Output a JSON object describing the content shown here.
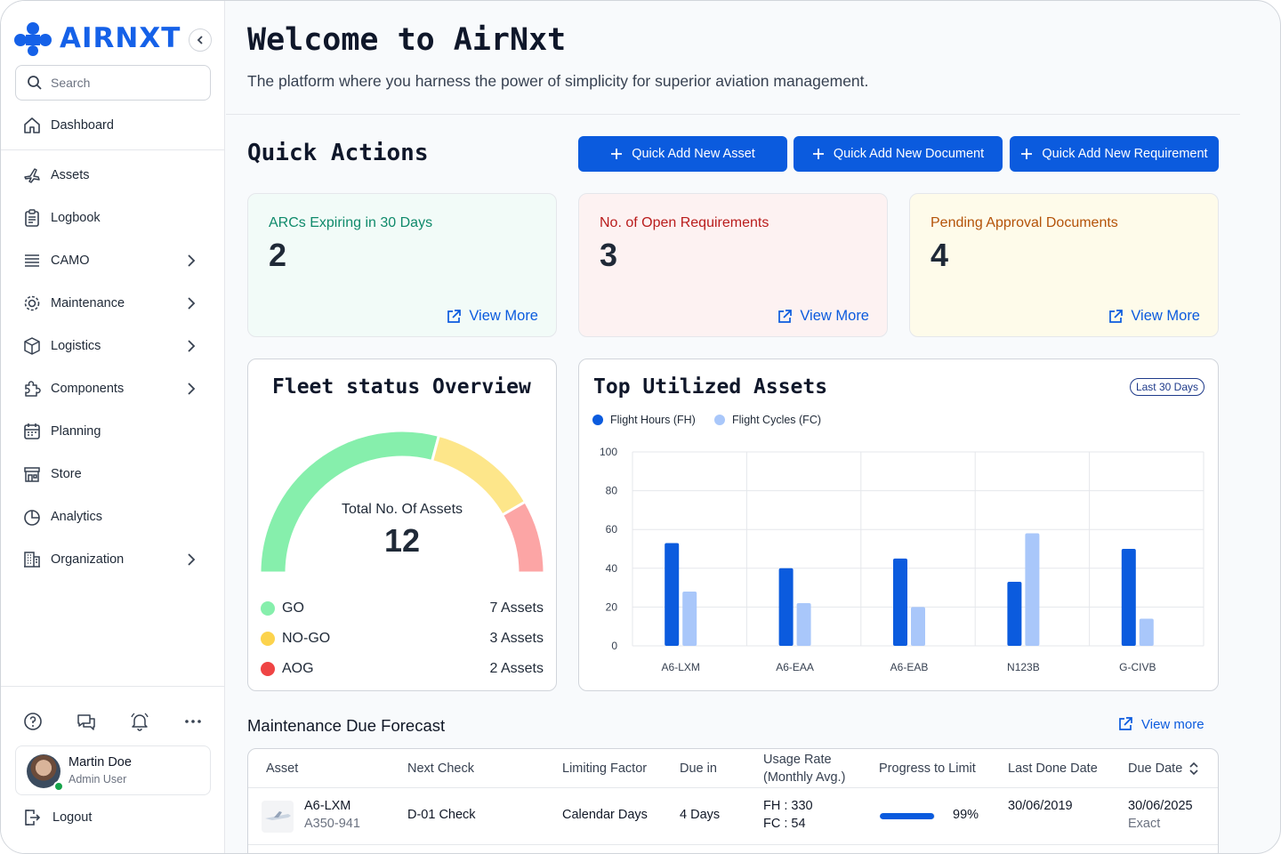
{
  "app": {
    "logo_text": "AIRNXT"
  },
  "sidebar": {
    "search_placeholder": "Search",
    "items": [
      {
        "label": "Dashboard",
        "icon": "home-icon"
      },
      {
        "label": "Assets",
        "icon": "plane-icon"
      },
      {
        "label": "Logbook",
        "icon": "clipboard-icon"
      },
      {
        "label": "CAMO",
        "icon": "list-icon",
        "expandable": true
      },
      {
        "label": "Maintenance",
        "icon": "gear-icon",
        "expandable": true
      },
      {
        "label": "Logistics",
        "icon": "box-icon",
        "expandable": true
      },
      {
        "label": "Components",
        "icon": "puzzle-icon",
        "expandable": true
      },
      {
        "label": "Planning",
        "icon": "calendar-icon"
      },
      {
        "label": "Store",
        "icon": "store-icon"
      },
      {
        "label": "Analytics",
        "icon": "pie-chart-icon"
      },
      {
        "label": "Organization",
        "icon": "building-icon",
        "expandable": true
      }
    ],
    "utility_icons": [
      "help-icon",
      "chat-icon",
      "bell-icon",
      "more-icon"
    ],
    "user": {
      "name": "Martin Doe",
      "role": "Admin User",
      "status_color": "#16a34a"
    },
    "logout_label": "Logout"
  },
  "header": {
    "title": "Welcome to AirNxt",
    "subtitle": "The platform where you harness the power of simplicity for superior aviation management."
  },
  "quick_actions": {
    "title": "Quick Actions",
    "buttons": [
      "Quick Add New Asset",
      "Quick Add New Document",
      "Quick Add New Requirement"
    ]
  },
  "stats": [
    {
      "label": "ARCs Expiring in 30 Days",
      "value": "2",
      "link": "View More",
      "color": "#0f8a6b",
      "bg": "#f2fbf8"
    },
    {
      "label": "No. of Open Requirements",
      "value": "3",
      "link": "View More",
      "color": "#b91c1c",
      "bg": "#fdf2f2"
    },
    {
      "label": "Pending Approval Documents",
      "value": "4",
      "link": "View More",
      "color": "#b45309",
      "bg": "#fefbea"
    }
  ],
  "fleet": {
    "title": "Fleet status Overview",
    "total_label": "Total No. Of Assets",
    "total_value": "12",
    "segments": [
      {
        "label": "GO",
        "count_label": "7 Assets",
        "value": 7,
        "color": "#86efac",
        "dot": "#86efac"
      },
      {
        "label": "NO-GO",
        "count_label": "3 Assets",
        "value": 3,
        "color": "#fde68a",
        "dot": "#fcd34d"
      },
      {
        "label": "AOG",
        "count_label": "2 Assets",
        "value": 2,
        "color": "#fca5a5",
        "dot": "#ef4444"
      }
    ]
  },
  "utilization": {
    "title": "Top Utilized Assets",
    "badge": "Last 30 Days"
  },
  "chart_data": {
    "type": "bar",
    "categories": [
      "A6-LXM",
      "A6-EAA",
      "A6-EAB",
      "N123B",
      "G-CIVB"
    ],
    "series": [
      {
        "name": "Flight Hours (FH)",
        "values": [
          53,
          40,
          45,
          33,
          50
        ],
        "color": "#0b5bde"
      },
      {
        "name": "Flight Cycles (FC)",
        "values": [
          28,
          22,
          20,
          58,
          14
        ],
        "color": "#a9c7fa"
      }
    ],
    "ylim": [
      0,
      100
    ],
    "yticks": [
      0,
      20,
      40,
      60,
      80,
      100
    ],
    "grid": true,
    "legend": "top-left"
  },
  "forecast": {
    "title": "Maintenance Due Forecast",
    "link": "View more",
    "columns": [
      "Asset",
      "Next Check",
      "Limiting Factor",
      "Due in",
      "Usage Rate\n(Monthly Avg.)",
      "Progress to Limit",
      "Last Done Date",
      "Due Date"
    ],
    "rows": [
      {
        "asset": "A6-LXM",
        "model": "A350-941",
        "next_check": "D-01 Check",
        "limiting_factor": "Calendar Days",
        "due_in": "4 Days",
        "usage_fh": "FH : 330",
        "usage_fc": "FC : 54",
        "progress": 99,
        "progress_label": "99%",
        "last_done": "30/06/2019",
        "due_date": "30/06/2025",
        "due_type": "Exact"
      }
    ]
  }
}
